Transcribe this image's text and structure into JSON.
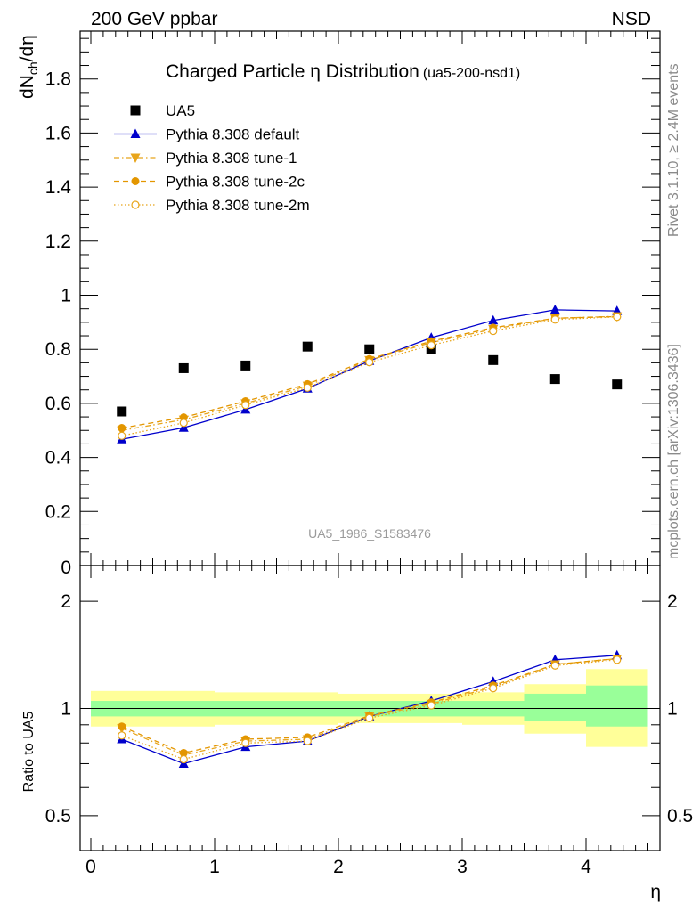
{
  "header": {
    "left_label": "200 GeV ppbar",
    "right_label": "NSD"
  },
  "side_labels": {
    "rivet": "Rivet 3.1.10, ≥ 2.4M events",
    "mcplots": "mcplots.cern.ch [arXiv:1306.3436]"
  },
  "chart_data": [
    {
      "panel": "main",
      "type": "scatter",
      "title": "Charged Particle η Distribution",
      "subtitle": "(ua5-200-nsd1)",
      "watermark": "UA5_1986_S1583476",
      "ylabel": "dN_ch/dη",
      "xlim": [
        -0.1,
        4.55
      ],
      "ylim": [
        0,
        1.98
      ],
      "yticks": [
        0.2,
        0.4,
        0.6,
        0.8,
        1,
        1.2,
        1.4,
        1.6,
        1.8
      ],
      "ytick_labels": [
        "0.2",
        "0.4",
        "0.6",
        "0.8",
        "1",
        "1.2",
        "1.4",
        "1.6",
        "1.8"
      ],
      "bottom_tick_label": "0",
      "legend_position": "top-left",
      "x": [
        0.25,
        0.75,
        1.25,
        1.75,
        2.25,
        2.75,
        3.25,
        3.75,
        4.25
      ],
      "series": [
        {
          "name": "UA5",
          "color": "#000000",
          "marker": "square",
          "line": "none",
          "values": [
            0.57,
            0.73,
            0.74,
            0.81,
            0.8,
            0.8,
            0.76,
            0.69,
            0.67
          ]
        },
        {
          "name": "Pythia 8.308 default",
          "color": "#0000cc",
          "marker": "triangle-up",
          "line": "solid",
          "values": [
            0.467,
            0.51,
            0.577,
            0.655,
            0.757,
            0.843,
            0.907,
            0.946,
            0.942
          ]
        },
        {
          "name": "Pythia 8.308 tune-1",
          "color": "#e8a51a",
          "marker": "triangle-down",
          "line": "dashdot",
          "values": [
            0.5,
            0.54,
            0.6,
            0.665,
            0.76,
            0.825,
            0.875,
            0.915,
            0.922
          ]
        },
        {
          "name": "Pythia 8.308 tune-2c",
          "color": "#e39600",
          "marker": "circle",
          "line": "dashed",
          "values": [
            0.509,
            0.548,
            0.608,
            0.671,
            0.764,
            0.83,
            0.88,
            0.915,
            0.921
          ]
        },
        {
          "name": "Pythia 8.308 tune-2m",
          "color": "#e8a51a",
          "marker": "open-circle",
          "line": "dotted",
          "values": [
            0.48,
            0.528,
            0.594,
            0.658,
            0.752,
            0.815,
            0.868,
            0.91,
            0.92
          ]
        }
      ]
    },
    {
      "panel": "ratio",
      "type": "line",
      "ylabel": "Ratio to UA5",
      "xlabel": "η",
      "log_y": true,
      "ylim": [
        0.42,
        2.35
      ],
      "yticks": [
        0.5,
        1,
        2
      ],
      "ytick_labels": [
        "0.5",
        "1",
        "2"
      ],
      "xticks": [
        0,
        1,
        2,
        3,
        4
      ],
      "xtick_labels": [
        "0",
        "1",
        "2",
        "3",
        "4"
      ],
      "bin_edges": [
        0,
        0.5,
        1,
        1.5,
        2,
        2.5,
        3,
        3.5,
        4,
        4.5
      ],
      "band_outer": [
        [
          0.89,
          1.12
        ],
        [
          0.89,
          1.12
        ],
        [
          0.9,
          1.11
        ],
        [
          0.9,
          1.11
        ],
        [
          0.91,
          1.1
        ],
        [
          0.91,
          1.1
        ],
        [
          0.9,
          1.11
        ],
        [
          0.85,
          1.17
        ],
        [
          0.78,
          1.29
        ]
      ],
      "band_inner": [
        [
          0.95,
          1.05
        ],
        [
          0.95,
          1.05
        ],
        [
          0.95,
          1.05
        ],
        [
          0.95,
          1.05
        ],
        [
          0.95,
          1.05
        ],
        [
          0.95,
          1.05
        ],
        [
          0.95,
          1.05
        ],
        [
          0.92,
          1.1
        ],
        [
          0.89,
          1.16
        ]
      ],
      "band_colors": {
        "outer": "#ffff99",
        "inner": "#99ff99"
      },
      "x": [
        0.25,
        0.75,
        1.25,
        1.75,
        2.25,
        2.75,
        3.25,
        3.75,
        4.25
      ],
      "series": [
        {
          "name": "Pythia 8.308 default",
          "color": "#0000cc",
          "marker": "triangle-up",
          "line": "solid",
          "values": [
            0.82,
            0.7,
            0.78,
            0.81,
            0.95,
            1.05,
            1.19,
            1.37,
            1.41
          ]
        },
        {
          "name": "Pythia 8.308 tune-1",
          "color": "#e8a51a",
          "marker": "triangle-down",
          "line": "dashdot",
          "values": [
            0.88,
            0.74,
            0.81,
            0.82,
            0.95,
            1.03,
            1.15,
            1.33,
            1.38
          ]
        },
        {
          "name": "Pythia 8.308 tune-2c",
          "color": "#e39600",
          "marker": "circle",
          "line": "dashed",
          "values": [
            0.89,
            0.75,
            0.82,
            0.83,
            0.955,
            1.04,
            1.16,
            1.33,
            1.38
          ]
        },
        {
          "name": "Pythia 8.308 tune-2m",
          "color": "#e8a51a",
          "marker": "open-circle",
          "line": "dotted",
          "values": [
            0.84,
            0.72,
            0.8,
            0.81,
            0.94,
            1.02,
            1.14,
            1.32,
            1.37
          ]
        }
      ]
    }
  ]
}
